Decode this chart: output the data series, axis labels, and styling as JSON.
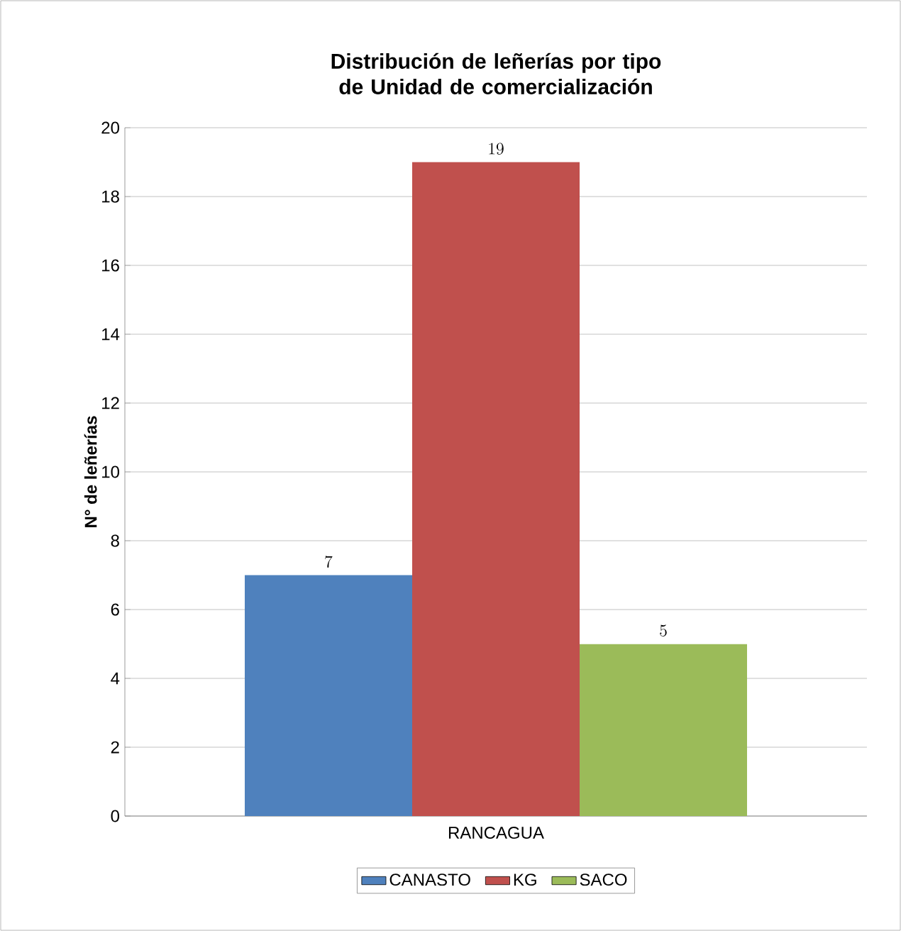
{
  "chart_data": {
    "type": "bar",
    "title": "Distribución de leñerías por tipo de Unidad de comercialización",
    "ylabel": "N° de leñerías",
    "categories": [
      "RANCAGUA"
    ],
    "series": [
      {
        "name": "CANASTO",
        "color": "#4f81bd",
        "values": [
          7
        ]
      },
      {
        "name": "KG",
        "color": "#c0504d",
        "values": [
          19
        ]
      },
      {
        "name": "SACO",
        "color": "#9bbb59",
        "values": [
          5
        ]
      }
    ],
    "ylim": [
      0,
      20
    ],
    "yticks": [
      0,
      2,
      4,
      6,
      8,
      10,
      12,
      14,
      16,
      18,
      20
    ],
    "grid": "y",
    "legend": "bottom",
    "data_labels": true
  }
}
